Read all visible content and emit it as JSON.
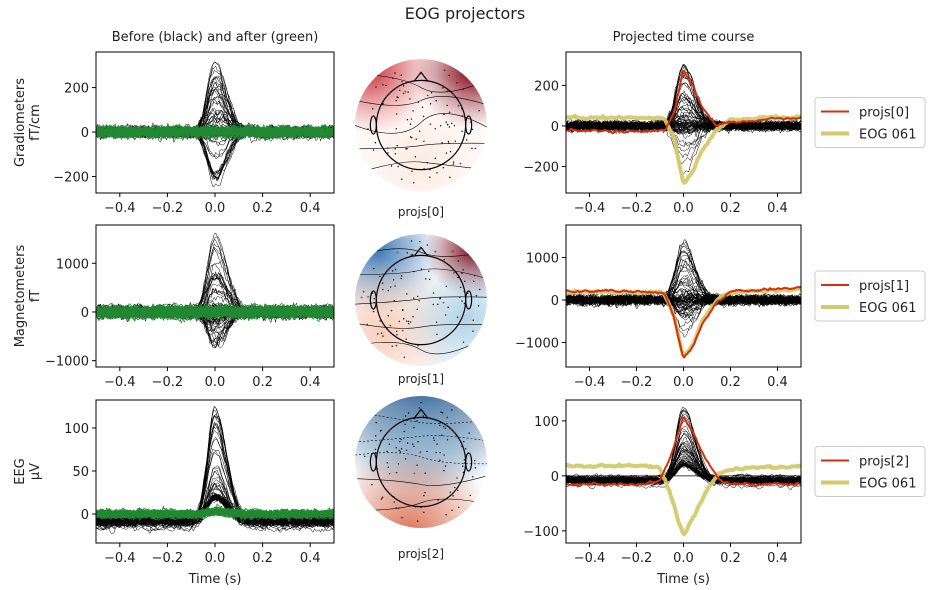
{
  "title": "EOG projectors",
  "chart_data": [
    {
      "type": "line",
      "panel": "left-grad",
      "title": "Before (black) and after (green)",
      "ylabel": [
        "Gradiometers",
        "fT/cm"
      ],
      "xlabel": "",
      "xlim": [
        -0.5,
        0.5
      ],
      "ylim": [
        -274,
        360
      ],
      "xticks": [
        "−0.4",
        "−0.2",
        "0.0",
        "0.2",
        "0.4"
      ],
      "yticks": [
        {
          "v": 200,
          "t": "200"
        },
        {
          "v": 0,
          "t": "0"
        },
        {
          "v": -200,
          "t": "−200"
        }
      ],
      "series_colors": {
        "before": "#000000",
        "after": "#228833"
      }
    },
    {
      "type": "line",
      "panel": "right-grad",
      "title": "Projected time course",
      "xlim": [
        -0.5,
        0.5
      ],
      "ylim": [
        -331,
        365
      ],
      "xticks": [
        "−0.4",
        "−0.2",
        "0.0",
        "0.2",
        "0.4"
      ],
      "yticks": [
        {
          "v": 200,
          "t": "200"
        },
        {
          "v": 0,
          "t": "0"
        },
        {
          "v": -200,
          "t": "−200"
        }
      ],
      "legend": [
        "projs[0]",
        "EOG 061"
      ],
      "legend_placement": "right",
      "series": [
        {
          "name": "projs[0]",
          "color": "#d62f10",
          "x": [
            -0.5,
            -0.2,
            -0.08,
            -0.04,
            0,
            0.04,
            0.08,
            0.14,
            0.2,
            0.35,
            0.5
          ],
          "y": [
            -20,
            -25,
            -20,
            60,
            280,
            200,
            90,
            0,
            20,
            30,
            40
          ]
        },
        {
          "name": "EOG 061",
          "color": "#d4c96b",
          "x": [
            -0.5,
            -0.2,
            -0.08,
            -0.04,
            0,
            0.04,
            0.08,
            0.14,
            0.2,
            0.35,
            0.5
          ],
          "y": [
            40,
            40,
            35,
            -60,
            -290,
            -220,
            -120,
            -20,
            30,
            40,
            45
          ]
        }
      ]
    },
    {
      "type": "line",
      "panel": "left-mag",
      "ylabel": [
        "Magnetometers",
        "fT"
      ],
      "xlim": [
        -0.5,
        0.5
      ],
      "ylim": [
        -1130,
        1786
      ],
      "xticks": [
        "−0.4",
        "−0.2",
        "0.0",
        "0.2",
        "0.4"
      ],
      "yticks": [
        {
          "v": 1000,
          "t": "1000"
        },
        {
          "v": 0,
          "t": "0"
        },
        {
          "v": -1000,
          "t": "−1000"
        }
      ]
    },
    {
      "type": "line",
      "panel": "right-mag",
      "xlim": [
        -0.5,
        0.5
      ],
      "ylim": [
        -1576,
        1765
      ],
      "xticks": [
        "−0.4",
        "−0.2",
        "0.0",
        "0.2",
        "0.4"
      ],
      "yticks": [
        {
          "v": 1000,
          "t": "1000"
        },
        {
          "v": 0,
          "t": "0"
        },
        {
          "v": -1000,
          "t": "−1000"
        }
      ],
      "legend": [
        "projs[1]",
        "EOG 061"
      ],
      "legend_placement": "right",
      "series": [
        {
          "name": "projs[1]",
          "color": "#d62f10",
          "x": [
            -0.5,
            -0.2,
            -0.08,
            -0.04,
            0,
            0.04,
            0.08,
            0.14,
            0.2,
            0.35,
            0.5
          ],
          "y": [
            220,
            200,
            150,
            -400,
            -1400,
            -1100,
            -550,
            -50,
            200,
            250,
            300
          ]
        },
        {
          "name": "EOG 061",
          "color": "#d4c96b",
          "x": [
            -0.5,
            -0.2,
            -0.08,
            -0.04,
            0,
            0.04,
            0.08,
            0.14,
            0.2,
            0.35,
            0.5
          ],
          "y": [
            180,
            200,
            150,
            -400,
            -1350,
            -1050,
            -500,
            0,
            180,
            220,
            240
          ]
        }
      ]
    },
    {
      "type": "line",
      "panel": "left-eeg",
      "ylabel": [
        "EEG",
        "µV"
      ],
      "xlabel": "Time (s)",
      "xlim": [
        -0.5,
        0.5
      ],
      "ylim": [
        -33.7,
        132.5
      ],
      "xticks": [
        "−0.4",
        "−0.2",
        "0.0",
        "0.2",
        "0.4"
      ],
      "yticks": [
        {
          "v": 100,
          "t": "100"
        },
        {
          "v": 50,
          "t": "50"
        },
        {
          "v": 0,
          "t": "0"
        }
      ]
    },
    {
      "type": "line",
      "panel": "right-eeg",
      "xlabel": "Time (s)",
      "xlim": [
        -0.5,
        0.5
      ],
      "ylim": [
        -122,
        138
      ],
      "xticks": [
        "−0.4",
        "−0.2",
        "0.0",
        "0.2",
        "0.4"
      ],
      "yticks": [
        {
          "v": 100,
          "t": "100"
        },
        {
          "v": 0,
          "t": "0"
        },
        {
          "v": -100,
          "t": "−100"
        }
      ],
      "legend": [
        "projs[2]",
        "EOG 061"
      ],
      "legend_placement": "right",
      "series": [
        {
          "name": "projs[2]",
          "color": "#d62f10",
          "x": [
            -0.5,
            -0.2,
            -0.1,
            -0.05,
            0,
            0.05,
            0.1,
            0.15,
            0.2,
            0.35,
            0.5
          ],
          "y": [
            -15,
            -15,
            -10,
            40,
            108,
            70,
            25,
            -5,
            -15,
            -15,
            -15
          ]
        },
        {
          "name": "EOG 061",
          "color": "#d4c96b",
          "x": [
            -0.5,
            -0.2,
            -0.1,
            -0.05,
            0,
            0.05,
            0.1,
            0.15,
            0.2,
            0.35,
            0.5
          ],
          "y": [
            18,
            18,
            15,
            -40,
            -108,
            -70,
            -25,
            5,
            12,
            15,
            18
          ]
        }
      ]
    }
  ],
  "topomaps": [
    {
      "label": "projs[0]"
    },
    {
      "label": "projs[1]"
    },
    {
      "label": "projs[2]"
    }
  ]
}
